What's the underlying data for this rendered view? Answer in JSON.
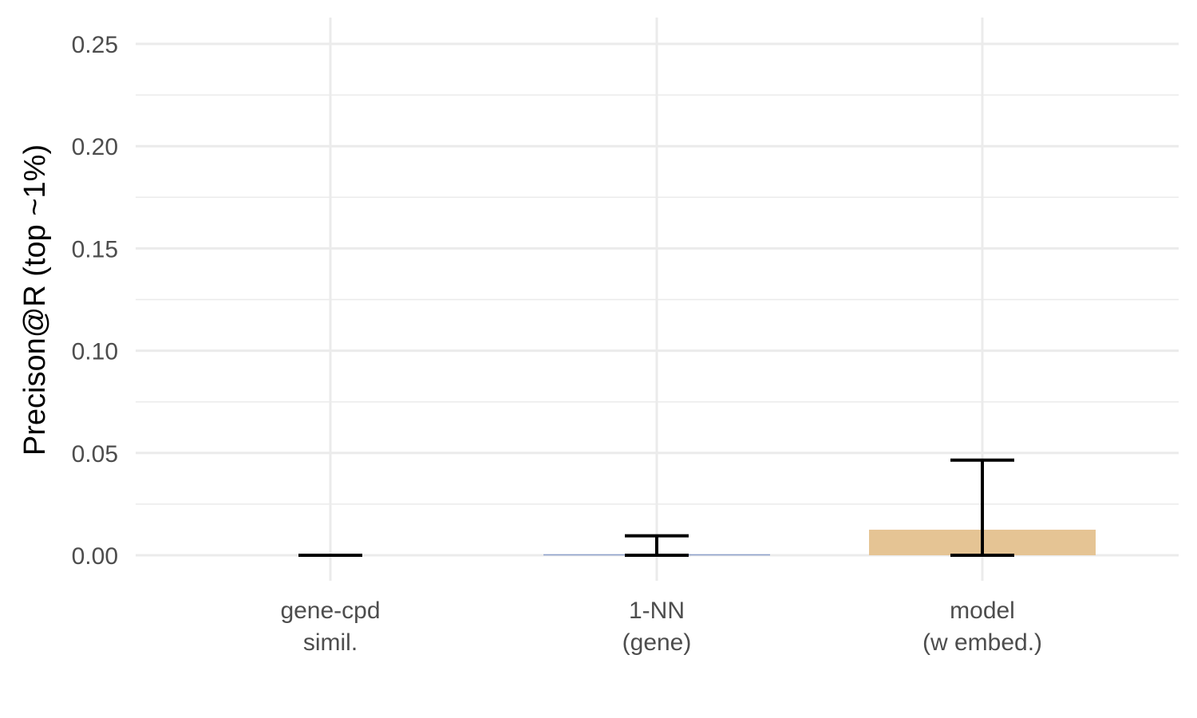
{
  "chart_data": {
    "type": "bar",
    "title": "",
    "xlabel": "",
    "ylabel": "Precison@R (top ~1%)",
    "ylim": [
      -0.01,
      0.26
    ],
    "yticks": [
      0.0,
      0.05,
      0.1,
      0.15,
      0.2,
      0.25
    ],
    "ytick_labels": [
      "0.00",
      "0.05",
      "0.10",
      "0.15",
      "0.20",
      "0.25"
    ],
    "categories": [
      [
        "gene-cpd",
        "simil."
      ],
      [
        "1-NN",
        "(gene)"
      ],
      [
        "model",
        "(w embed.)"
      ]
    ],
    "values": [
      0.0,
      0.0005,
      0.0125
    ],
    "error_low": [
      0.0,
      0.0,
      0.0
    ],
    "error_high": [
      0.0,
      0.0095,
      0.0465
    ],
    "bar_colors": [
      "#ffffff",
      "#8da0cb",
      "#e5c494"
    ],
    "grid": true,
    "legend": "none"
  }
}
